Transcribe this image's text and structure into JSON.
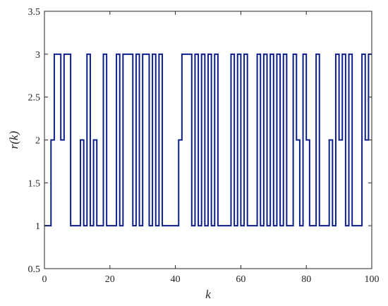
{
  "chart_data": {
    "type": "line",
    "step": "post",
    "xlabel": "k",
    "ylabel": "r(k)",
    "xlim": [
      0,
      100
    ],
    "ylim": [
      0.5,
      3.5
    ],
    "xticks": [
      0,
      20,
      40,
      60,
      80,
      100
    ],
    "yticks": [
      0.5,
      1,
      1.5,
      2,
      2.5,
      3,
      3.5
    ],
    "xtick_labels": [
      "0",
      "20",
      "40",
      "60",
      "80",
      "100"
    ],
    "ytick_labels": [
      "0.5",
      "1",
      "1.5",
      "2",
      "2.5",
      "3",
      "3.5"
    ],
    "grid": false,
    "series": [
      {
        "color": "#0d1f8c",
        "x": [
          0,
          1,
          2,
          3,
          4,
          5,
          6,
          7,
          8,
          9,
          10,
          11,
          12,
          13,
          14,
          15,
          16,
          17,
          18,
          19,
          20,
          21,
          22,
          23,
          24,
          25,
          26,
          27,
          28,
          29,
          30,
          31,
          32,
          33,
          34,
          35,
          36,
          37,
          38,
          39,
          40,
          41,
          42,
          43,
          44,
          45,
          46,
          47,
          48,
          49,
          50,
          51,
          52,
          53,
          54,
          55,
          56,
          57,
          58,
          59,
          60,
          61,
          62,
          63,
          64,
          65,
          66,
          67,
          68,
          69,
          70,
          71,
          72,
          73,
          74,
          75,
          76,
          77,
          78,
          79,
          80,
          81,
          82,
          83,
          84,
          85,
          86,
          87,
          88,
          89,
          90,
          91,
          92,
          93,
          94,
          95,
          96,
          97,
          98,
          99
        ],
        "y": [
          1,
          1,
          2,
          3,
          3,
          2,
          3,
          3,
          1,
          1,
          1,
          2,
          1,
          3,
          1,
          2,
          1,
          1,
          3,
          1,
          1,
          1,
          3,
          1,
          3,
          3,
          3,
          1,
          3,
          1,
          3,
          3,
          1,
          3,
          1,
          3,
          1,
          1,
          1,
          1,
          1,
          2,
          3,
          3,
          3,
          1,
          3,
          1,
          3,
          1,
          3,
          1,
          3,
          1,
          1,
          1,
          1,
          3,
          1,
          3,
          1,
          3,
          1,
          1,
          1,
          3,
          1,
          3,
          1,
          3,
          1,
          3,
          1,
          3,
          1,
          1,
          3,
          2,
          1,
          3,
          2,
          1,
          1,
          3,
          1,
          1,
          1,
          2,
          1,
          3,
          2,
          3,
          1,
          3,
          1,
          1,
          1,
          3,
          2,
          3
        ]
      }
    ]
  }
}
